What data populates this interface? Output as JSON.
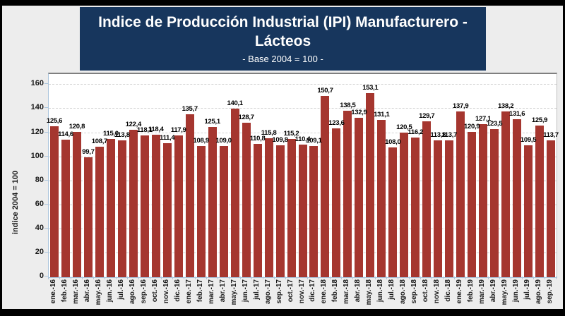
{
  "page": {
    "background_color": "#EDEDED",
    "frame_color": "#000000"
  },
  "title_box": {
    "line1": "Indice de Producción Industrial (IPI) Manufacturero -",
    "line2": "Lácteos",
    "subtitle": "- Base 2004 = 100 -",
    "bg_color": "#17365D",
    "text_color": "#FFFFFF"
  },
  "chart_data": {
    "type": "bar",
    "title": "Indice de Producción Industrial (IPI) Manufacturero - Lácteos",
    "subtitle": "- Base 2004 = 100 -",
    "xlabel": "",
    "ylabel": "indice 2004 = 100",
    "ylim": [
      0,
      169
    ],
    "yticks": [
      0,
      20,
      40,
      60,
      80,
      100,
      120,
      140,
      160
    ],
    "grid": "horizontal-dashed",
    "legend": false,
    "data_labels": true,
    "decimal_separator": ",",
    "bar_color": "#A5362F",
    "axis_color": "#A9C4DC",
    "gridline_color": "#D3D3D3",
    "categories": [
      "ene.-16",
      "feb.-16",
      "mar.-16",
      "abr.-16",
      "may.-16",
      "jun.-16",
      "jul.-16",
      "ago.-16",
      "sep.-16",
      "oct.-16",
      "nov.-16",
      "dic.-16",
      "ene.-17",
      "feb.-17",
      "mar.-17",
      "abr.-17",
      "may.-17",
      "jun.-17",
      "jul.-17",
      "ago.-17",
      "sep.-17",
      "oct.-17",
      "nov.-17",
      "dic.-17",
      "ene.-18",
      "feb.-18",
      "mar.-18",
      "abr.-18",
      "may.-18",
      "jun.-18",
      "jul.-18",
      "ago.-18",
      "sep.-18",
      "oct.-18",
      "nov.-18",
      "dic.-18",
      "ene.-19",
      "feb.-19",
      "mar.-19",
      "abr.-19",
      "may.-19",
      "jun.-19",
      "jul.-19",
      "ago.-19",
      "sep.-19"
    ],
    "values": [
      125.6,
      114.6,
      120.8,
      99.7,
      108.7,
      115.0,
      113.8,
      122.4,
      118.1,
      118.4,
      111.4,
      117.9,
      135.7,
      108.9,
      125.1,
      109.0,
      140.1,
      128.7,
      110.8,
      115.8,
      109.8,
      115.2,
      110.4,
      109.1,
      150.7,
      123.6,
      138.5,
      132.9,
      153.1,
      131.1,
      108.0,
      120.5,
      116.2,
      129.7,
      113.8,
      113.7,
      137.9,
      120.9,
      127.1,
      123.5,
      138.2,
      131.6,
      109.5,
      125.9,
      113.7
    ]
  }
}
